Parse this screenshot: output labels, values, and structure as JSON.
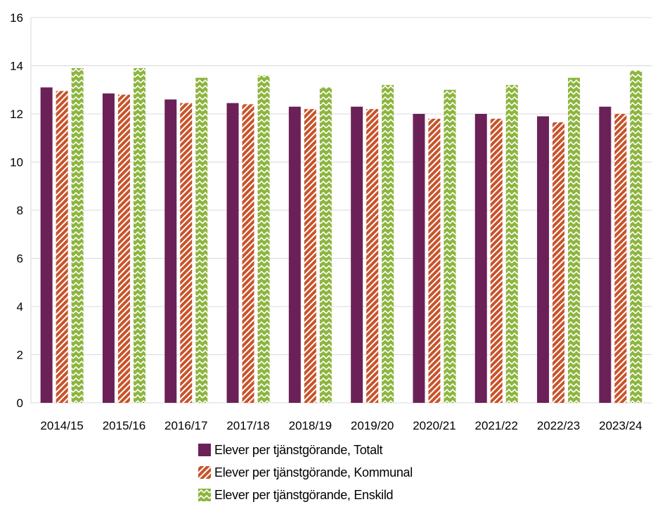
{
  "chart_data": {
    "type": "bar",
    "categories": [
      "2014/15",
      "2015/16",
      "2016/17",
      "2017/18",
      "2018/19",
      "2019/20",
      "2020/21",
      "2021/22",
      "2022/23",
      "2023/24"
    ],
    "series": [
      {
        "name": "Elever per tjänstgörande, Totalt",
        "values": [
          13.1,
          12.85,
          12.6,
          12.45,
          12.3,
          12.3,
          12.0,
          12.0,
          11.9,
          12.3
        ],
        "color": "#6b2157",
        "pattern": "solid"
      },
      {
        "name": "Elever per tjänstgörande, Kommunal",
        "values": [
          12.95,
          12.8,
          12.45,
          12.4,
          12.2,
          12.2,
          11.8,
          11.8,
          11.65,
          12.0
        ],
        "color": "#c9532a",
        "pattern": "diagonal-stripes"
      },
      {
        "name": "Elever per tjänstgörande, Enskild",
        "values": [
          13.9,
          13.9,
          13.5,
          13.6,
          13.1,
          13.2,
          13.0,
          13.2,
          13.5,
          13.8
        ],
        "color": "#8db53e",
        "pattern": "zigzag"
      }
    ],
    "ylim": [
      0,
      16
    ],
    "yticks": [
      0,
      2,
      4,
      6,
      8,
      10,
      12,
      14,
      16
    ],
    "grid": true,
    "legend_position": "bottom",
    "title": "",
    "xlabel": "",
    "ylabel": ""
  }
}
